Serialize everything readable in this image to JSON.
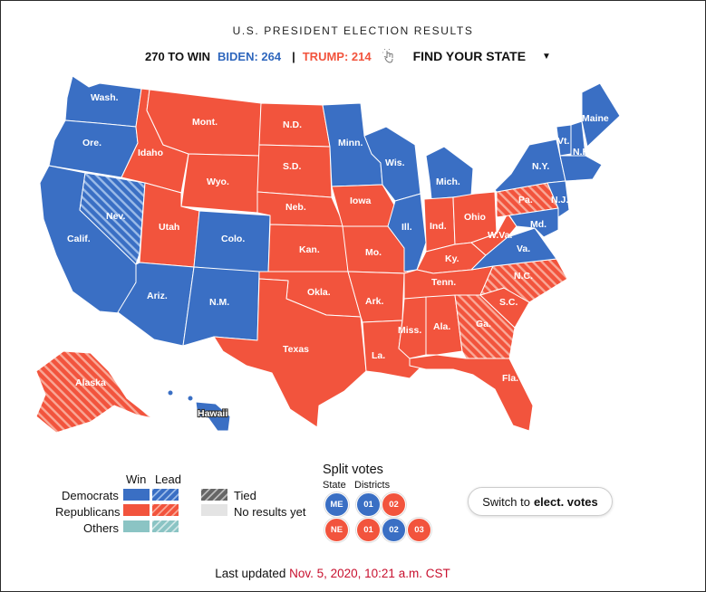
{
  "header": {
    "title": "U.S. PRESIDENT ELECTION RESULTS"
  },
  "tally": {
    "win_label": "270 TO WIN",
    "biden_label": "BIDEN: 264",
    "separator": "|",
    "trump_label": "TRUMP: 214",
    "find_state_label": "FIND YOUR STATE"
  },
  "colors": {
    "democrat": "#3a6fc4",
    "republican": "#f2543d",
    "tied": "#8a8a8a",
    "no_results": "#e4e4e4",
    "others": "#8bc4c4"
  },
  "states": [
    {
      "id": "wash",
      "label": "Wash.",
      "party": "dem",
      "lead": false
    },
    {
      "id": "ore",
      "label": "Ore.",
      "party": "dem",
      "lead": false
    },
    {
      "id": "calif",
      "label": "Calif.",
      "party": "dem",
      "lead": false
    },
    {
      "id": "nev",
      "label": "Nev.",
      "party": "dem",
      "lead": true
    },
    {
      "id": "idaho",
      "label": "Idaho",
      "party": "rep",
      "lead": false
    },
    {
      "id": "mont",
      "label": "Mont.",
      "party": "rep",
      "lead": false
    },
    {
      "id": "wyo",
      "label": "Wyo.",
      "party": "rep",
      "lead": false
    },
    {
      "id": "utah",
      "label": "Utah",
      "party": "rep",
      "lead": false
    },
    {
      "id": "ariz",
      "label": "Ariz.",
      "party": "dem",
      "lead": false
    },
    {
      "id": "colo",
      "label": "Colo.",
      "party": "dem",
      "lead": false
    },
    {
      "id": "nm",
      "label": "N.M.",
      "party": "dem",
      "lead": false
    },
    {
      "id": "nd",
      "label": "N.D.",
      "party": "rep",
      "lead": false
    },
    {
      "id": "sd",
      "label": "S.D.",
      "party": "rep",
      "lead": false
    },
    {
      "id": "neb",
      "label": "Neb.",
      "party": "rep",
      "lead": false
    },
    {
      "id": "kan",
      "label": "Kan.",
      "party": "rep",
      "lead": false
    },
    {
      "id": "okla",
      "label": "Okla.",
      "party": "rep",
      "lead": false
    },
    {
      "id": "texas",
      "label": "Texas",
      "party": "rep",
      "lead": false
    },
    {
      "id": "minn",
      "label": "Minn.",
      "party": "dem",
      "lead": false
    },
    {
      "id": "iowa",
      "label": "Iowa",
      "party": "rep",
      "lead": false
    },
    {
      "id": "mo",
      "label": "Mo.",
      "party": "rep",
      "lead": false
    },
    {
      "id": "ark",
      "label": "Ark.",
      "party": "rep",
      "lead": false
    },
    {
      "id": "la",
      "label": "La.",
      "party": "rep",
      "lead": false
    },
    {
      "id": "wis",
      "label": "Wis.",
      "party": "dem",
      "lead": false
    },
    {
      "id": "ill",
      "label": "Ill.",
      "party": "dem",
      "lead": false
    },
    {
      "id": "mich",
      "label": "Mich.",
      "party": "dem",
      "lead": false
    },
    {
      "id": "ind",
      "label": "Ind.",
      "party": "rep",
      "lead": false
    },
    {
      "id": "ohio",
      "label": "Ohio",
      "party": "rep",
      "lead": false
    },
    {
      "id": "ky",
      "label": "Ky.",
      "party": "rep",
      "lead": false
    },
    {
      "id": "tenn",
      "label": "Tenn.",
      "party": "rep",
      "lead": false
    },
    {
      "id": "miss",
      "label": "Miss.",
      "party": "rep",
      "lead": false
    },
    {
      "id": "ala",
      "label": "Ala.",
      "party": "rep",
      "lead": false
    },
    {
      "id": "ga",
      "label": "Ga.",
      "party": "rep",
      "lead": true
    },
    {
      "id": "fla",
      "label": "Fla.",
      "party": "rep",
      "lead": false
    },
    {
      "id": "sc",
      "label": "S.C.",
      "party": "rep",
      "lead": false
    },
    {
      "id": "nc",
      "label": "N.C.",
      "party": "rep",
      "lead": true
    },
    {
      "id": "va",
      "label": "Va.",
      "party": "dem",
      "lead": false
    },
    {
      "id": "wva",
      "label": "W.Va.",
      "party": "rep",
      "lead": false
    },
    {
      "id": "pa",
      "label": "Pa.",
      "party": "rep",
      "lead": true
    },
    {
      "id": "ny",
      "label": "N.Y.",
      "party": "dem",
      "lead": false
    },
    {
      "id": "nj",
      "label": "N.J.",
      "party": "dem",
      "lead": false
    },
    {
      "id": "md",
      "label": "Md.",
      "party": "dem",
      "lead": false
    },
    {
      "id": "vt",
      "label": "Vt.",
      "party": "dem",
      "lead": false
    },
    {
      "id": "nh",
      "label": "N.H.",
      "party": "dem",
      "lead": false
    },
    {
      "id": "maine",
      "label": "Maine",
      "party": "dem",
      "lead": false
    },
    {
      "id": "alaska",
      "label": "Alaska",
      "party": "rep",
      "lead": true
    },
    {
      "id": "hawaii",
      "label": "Hawaii",
      "party": "dem",
      "lead": false
    }
  ],
  "legend": {
    "win_header": "Win",
    "lead_header": "Lead",
    "democrats": "Democrats",
    "republicans": "Republicans",
    "others": "Others",
    "tied": "Tied",
    "no_results": "No results yet"
  },
  "split_votes": {
    "title": "Split votes",
    "state_header": "State",
    "districts_header": "Districts",
    "me": {
      "state": "ME",
      "districts": [
        "01",
        "02"
      ]
    },
    "ne": {
      "state": "NE",
      "districts": [
        "01",
        "02",
        "03"
      ]
    }
  },
  "switch_button": {
    "prefix": "Switch to ",
    "emphasis": "elect. votes"
  },
  "updated": {
    "prefix": "Last updated ",
    "datetime": "Nov. 5, 2020, 10:21 a.m. CST"
  }
}
